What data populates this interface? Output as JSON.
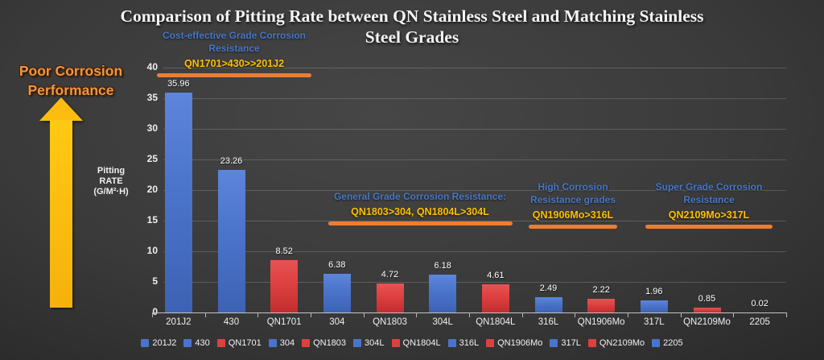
{
  "page": {
    "title_lines": [
      "Comparison of Pitting Rate between QN Stainless Steel and Matching Stainless",
      "Steel Grades"
    ]
  },
  "callout": {
    "lines": [
      "Poor Corrosion",
      "Performance"
    ]
  },
  "colors": {
    "blue_bar": "#4A74CA",
    "red_bar": "#DE4040",
    "annotation_blue": "#4677C8",
    "annotation_yellow": "#FFC000",
    "underline_orange": "#ED7D31",
    "callout_orange": "#F0953F",
    "arrow_gold": "#FCBD10",
    "axis_text": "#EFEFEF"
  },
  "chart_data": {
    "type": "bar",
    "title": "Comparison of Pitting Rate between QN Stainless Steel and Matching Stainless Steel Grades",
    "xlabel": "",
    "ylabel": "Pitting RATE (G/M²·H)",
    "ylabel_lines": [
      "Pitting",
      "RATE",
      "(G/M²·H)"
    ],
    "ylim": [
      0,
      40
    ],
    "ytick_step": 5,
    "grid": true,
    "legend_position": "bottom",
    "categories": [
      "201J2",
      "430",
      "QN1701",
      "304",
      "QN1803",
      "304L",
      "QN1804L",
      "316L",
      "QN1906Mo",
      "317L",
      "QN2109Mo",
      "2205"
    ],
    "values": [
      35.96,
      23.26,
      8.52,
      6.38,
      4.72,
      6.18,
      4.61,
      2.49,
      2.22,
      1.96,
      0.85,
      0.02
    ],
    "value_labels": [
      "35.96",
      "23.26",
      "8.52",
      "6.38",
      "4.72",
      "6.18",
      "4.61",
      "2.49",
      "2.22",
      "1.96",
      "0.85",
      "0.02"
    ],
    "bar_color_roles": [
      "blue",
      "blue",
      "red",
      "blue",
      "red",
      "blue",
      "red",
      "blue",
      "red",
      "blue",
      "red",
      "blue"
    ],
    "annotations": [
      {
        "heading_lines": [
          "Cost-effective Grade Corrosion",
          "Resistance"
        ],
        "relation": "QN1701>430>>201J2"
      },
      {
        "heading_lines": [
          "General Grade Corrosion Resistance:"
        ],
        "relation": "QN1803>304, QN1804L>304L"
      },
      {
        "heading_lines": [
          "High Corrosion",
          "Resistance grades"
        ],
        "relation": "QN1906Mo>316L"
      },
      {
        "heading_lines": [
          "Super Grade Corrosion",
          "Resistance"
        ],
        "relation": "QN2109Mo>317L"
      }
    ]
  }
}
